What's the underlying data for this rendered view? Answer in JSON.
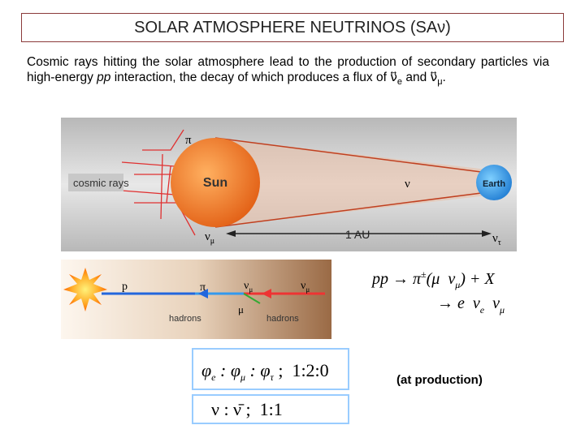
{
  "title": "SOLAR ATMOSPHERE NEUTRINOS (SAν)",
  "intro": {
    "text1": "Cosmic rays hitting the solar atmosphere lead to the production of secondary particles via high-energy",
    "pp": "pp",
    "text2": "interaction, the decay of which produces a flux of",
    "nu_e": {
      "base": "ν⃡",
      "sub": "e"
    },
    "and": "and",
    "nu_mu": {
      "base": "ν⃡",
      "sub": "μ"
    },
    "end": "."
  },
  "diagram1": {
    "pion": "π",
    "cosmic_rays": "cosmic rays",
    "sun": "Sun",
    "nu": "ν",
    "earth": "Earth",
    "nu_mu": {
      "base": "ν",
      "sub": "μ"
    },
    "distance": "1 AU",
    "nu_tau": {
      "base": "ν",
      "sub": "τ"
    }
  },
  "diagram2": {
    "proton": "p",
    "pion": "π",
    "nu_mu_1": {
      "base": "ν",
      "sub": "μ"
    },
    "nu_mu_2": {
      "base": "ν",
      "sub": "μ"
    },
    "hadrons_1": "hadrons",
    "muon": "μ",
    "hadrons_2": "hadrons"
  },
  "reaction": {
    "line1": [
      "pp → π",
      "±",
      "(μ  ν",
      "μ",
      ") + X"
    ],
    "line2": [
      "→ e  ν",
      "e",
      "  ν",
      "μ"
    ]
  },
  "flavor_ratio": [
    "φ",
    "e",
    " : φ",
    "μ",
    " : φ",
    "τ",
    " ;  1:2:0"
  ],
  "nu_ratio": "ν : ν̄ ;  1:1",
  "note": "(at production)"
}
